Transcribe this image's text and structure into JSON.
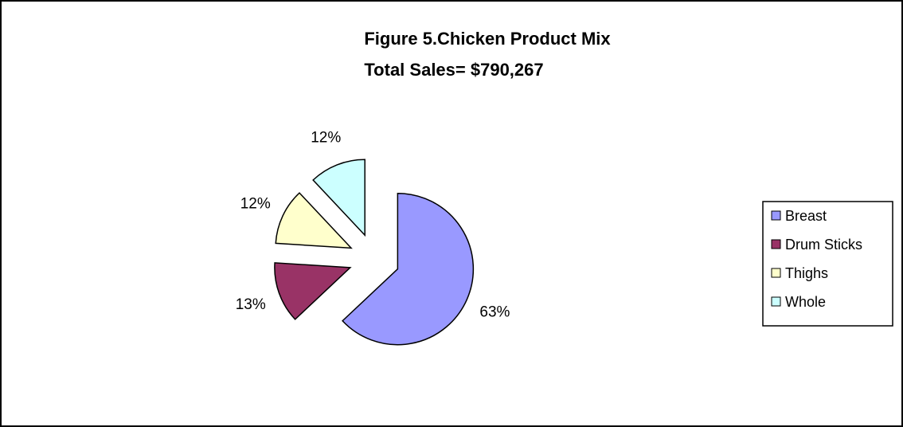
{
  "chart_data": {
    "type": "pie",
    "title": "Figure 5.Chicken Product Mix",
    "subtitle": "Total Sales= $790,267",
    "categories": [
      "Breast",
      "Drum Sticks",
      "Thighs",
      "Whole"
    ],
    "values": [
      63,
      13,
      12,
      12
    ],
    "labels": [
      "63%",
      "13%",
      "12%",
      "12%"
    ],
    "colors": [
      "#9999ff",
      "#993366",
      "#ffffcc",
      "#ccffff"
    ],
    "exploded": true,
    "legend_position": "right"
  }
}
